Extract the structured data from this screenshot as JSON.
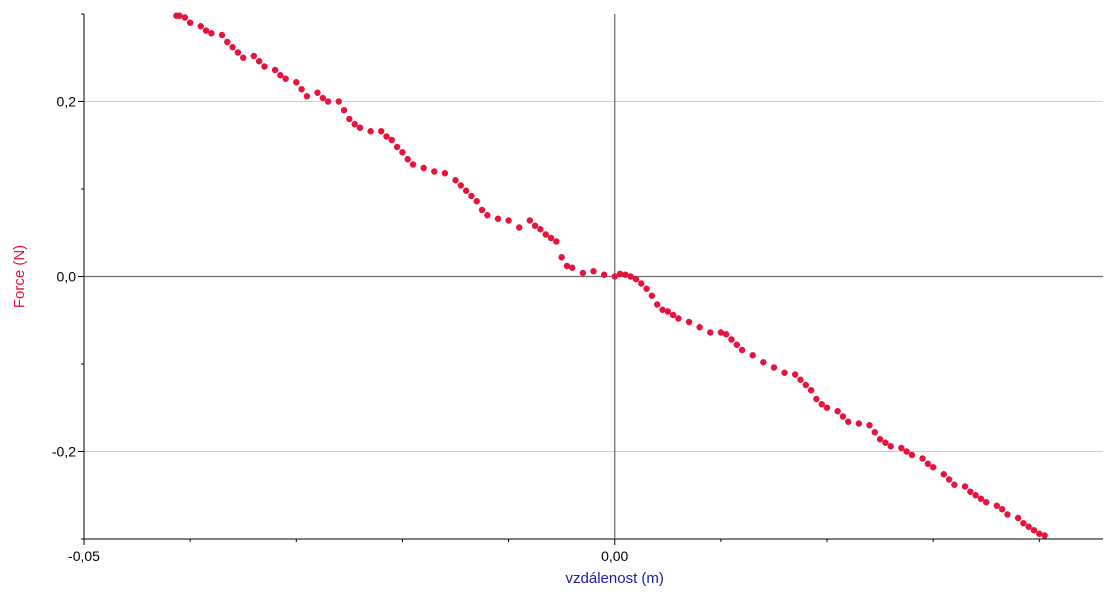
{
  "chart_data": {
    "type": "scatter",
    "xlabel": "vzdálenost (m)",
    "ylabel": "Force (N)",
    "xlim": [
      -0.05,
      0.046
    ],
    "ylim": [
      -0.3,
      0.3
    ],
    "x_tick_labels": [
      {
        "value": -0.05,
        "label": "-0,05"
      },
      {
        "value": 0.0,
        "label": "0,00"
      }
    ],
    "y_tick_labels": [
      {
        "value": 0.2,
        "label": "0,2"
      },
      {
        "value": 0.0,
        "label": "0,0"
      },
      {
        "value": -0.2,
        "label": "-0,2"
      }
    ],
    "grid": true,
    "colors": {
      "points": "#e8123c",
      "ylabel": "#e8123c",
      "xlabel": "#1a1aa8",
      "zero_lines": "#6e6e6e",
      "grid": "#cccccc"
    },
    "series": [
      {
        "points": [
          [
            -0.0413,
            0.298
          ],
          [
            -0.041,
            0.298
          ],
          [
            -0.0405,
            0.296
          ],
          [
            -0.04,
            0.29
          ],
          [
            -0.039,
            0.286
          ],
          [
            -0.0385,
            0.281
          ],
          [
            -0.038,
            0.278
          ],
          [
            -0.037,
            0.276
          ],
          [
            -0.0365,
            0.268
          ],
          [
            -0.036,
            0.262
          ],
          [
            -0.0355,
            0.256
          ],
          [
            -0.035,
            0.25
          ],
          [
            -0.034,
            0.252
          ],
          [
            -0.0335,
            0.246
          ],
          [
            -0.033,
            0.24
          ],
          [
            -0.032,
            0.236
          ],
          [
            -0.0315,
            0.23
          ],
          [
            -0.031,
            0.226
          ],
          [
            -0.03,
            0.222
          ],
          [
            -0.0295,
            0.214
          ],
          [
            -0.029,
            0.206
          ],
          [
            -0.028,
            0.21
          ],
          [
            -0.0275,
            0.204
          ],
          [
            -0.027,
            0.2
          ],
          [
            -0.026,
            0.2
          ],
          [
            -0.0255,
            0.19
          ],
          [
            -0.025,
            0.18
          ],
          [
            -0.0245,
            0.174
          ],
          [
            -0.024,
            0.17
          ],
          [
            -0.023,
            0.166
          ],
          [
            -0.022,
            0.166
          ],
          [
            -0.0215,
            0.16
          ],
          [
            -0.021,
            0.156
          ],
          [
            -0.0205,
            0.148
          ],
          [
            -0.02,
            0.142
          ],
          [
            -0.0195,
            0.134
          ],
          [
            -0.019,
            0.128
          ],
          [
            -0.018,
            0.124
          ],
          [
            -0.017,
            0.12
          ],
          [
            -0.016,
            0.118
          ],
          [
            -0.015,
            0.11
          ],
          [
            -0.0145,
            0.104
          ],
          [
            -0.014,
            0.098
          ],
          [
            -0.0135,
            0.092
          ],
          [
            -0.013,
            0.086
          ],
          [
            -0.0125,
            0.076
          ],
          [
            -0.012,
            0.07
          ],
          [
            -0.011,
            0.066
          ],
          [
            -0.01,
            0.064
          ],
          [
            -0.009,
            0.056
          ],
          [
            -0.008,
            0.064
          ],
          [
            -0.0075,
            0.058
          ],
          [
            -0.007,
            0.054
          ],
          [
            -0.0065,
            0.048
          ],
          [
            -0.006,
            0.044
          ],
          [
            -0.0055,
            0.04
          ],
          [
            -0.005,
            0.022
          ],
          [
            -0.0045,
            0.012
          ],
          [
            -0.004,
            0.01
          ],
          [
            -0.003,
            0.004
          ],
          [
            -0.002,
            0.006
          ],
          [
            -0.001,
            0.002
          ],
          [
            0.0,
            0.0
          ],
          [
            0.0005,
            0.003
          ],
          [
            0.001,
            0.002
          ],
          [
            0.0015,
            0.0
          ],
          [
            0.002,
            -0.003
          ],
          [
            0.0025,
            -0.008
          ],
          [
            0.003,
            -0.014
          ],
          [
            0.0035,
            -0.022
          ],
          [
            0.004,
            -0.032
          ],
          [
            0.0045,
            -0.038
          ],
          [
            0.005,
            -0.04
          ],
          [
            0.0055,
            -0.044
          ],
          [
            0.006,
            -0.048
          ],
          [
            0.007,
            -0.052
          ],
          [
            0.008,
            -0.058
          ],
          [
            0.009,
            -0.064
          ],
          [
            0.01,
            -0.064
          ],
          [
            0.0105,
            -0.066
          ],
          [
            0.011,
            -0.072
          ],
          [
            0.0115,
            -0.078
          ],
          [
            0.012,
            -0.084
          ],
          [
            0.013,
            -0.09
          ],
          [
            0.014,
            -0.098
          ],
          [
            0.015,
            -0.104
          ],
          [
            0.016,
            -0.11
          ],
          [
            0.017,
            -0.112
          ],
          [
            0.0175,
            -0.118
          ],
          [
            0.018,
            -0.124
          ],
          [
            0.0185,
            -0.13
          ],
          [
            0.019,
            -0.14
          ],
          [
            0.0195,
            -0.146
          ],
          [
            0.02,
            -0.15
          ],
          [
            0.021,
            -0.154
          ],
          [
            0.0215,
            -0.16
          ],
          [
            0.022,
            -0.166
          ],
          [
            0.023,
            -0.168
          ],
          [
            0.024,
            -0.17
          ],
          [
            0.0245,
            -0.178
          ],
          [
            0.025,
            -0.186
          ],
          [
            0.0255,
            -0.19
          ],
          [
            0.026,
            -0.194
          ],
          [
            0.027,
            -0.196
          ],
          [
            0.0275,
            -0.2
          ],
          [
            0.028,
            -0.204
          ],
          [
            0.029,
            -0.208
          ],
          [
            0.0295,
            -0.214
          ],
          [
            0.03,
            -0.218
          ],
          [
            0.031,
            -0.226
          ],
          [
            0.0315,
            -0.232
          ],
          [
            0.032,
            -0.238
          ],
          [
            0.033,
            -0.24
          ],
          [
            0.0335,
            -0.246
          ],
          [
            0.034,
            -0.25
          ],
          [
            0.0345,
            -0.254
          ],
          [
            0.035,
            -0.258
          ],
          [
            0.036,
            -0.262
          ],
          [
            0.0365,
            -0.266
          ],
          [
            0.037,
            -0.272
          ],
          [
            0.038,
            -0.276
          ],
          [
            0.0385,
            -0.282
          ],
          [
            0.039,
            -0.286
          ],
          [
            0.0395,
            -0.29
          ],
          [
            0.04,
            -0.294
          ],
          [
            0.0405,
            -0.296
          ]
        ]
      }
    ]
  }
}
